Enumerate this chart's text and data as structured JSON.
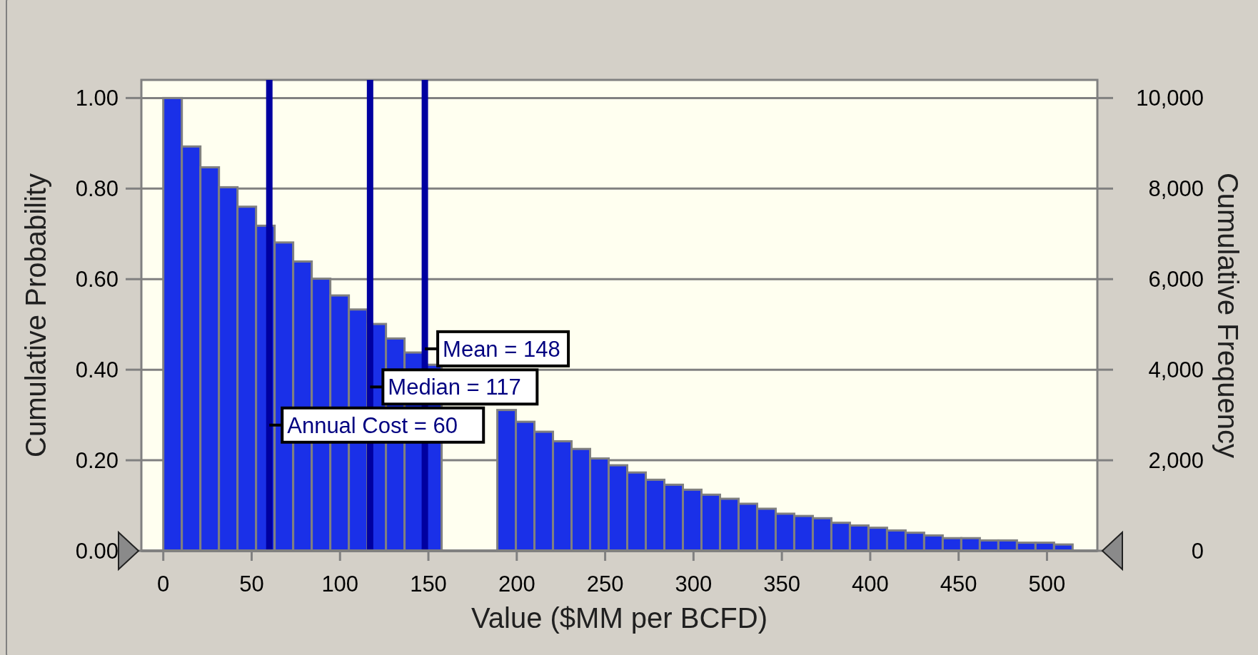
{
  "chart_data": {
    "type": "histogram",
    "xlabel": "Value ($MM per BCFD)",
    "ylabel": "Cumulative Probability",
    "y2label": "Cumulative Frequency",
    "bins": [
      0,
      10.5,
      21,
      31.5,
      42,
      52.5,
      63,
      73.5,
      84,
      94.5,
      105,
      115.5,
      126,
      136.5,
      147,
      157.5,
      168,
      178.5,
      189,
      199.5,
      210,
      220.5,
      231,
      241.5,
      252,
      262.5,
      273,
      283.5,
      294,
      304.5,
      315,
      325.5,
      336,
      346.5,
      357,
      367.5,
      378,
      388.5,
      399,
      409.5,
      420,
      430.5,
      441,
      451.5,
      462,
      472.5,
      483,
      493.5,
      504,
      514.5
    ],
    "values": [
      1.0,
      0.893,
      0.847,
      0.803,
      0.76,
      0.718,
      0.681,
      0.639,
      0.601,
      0.564,
      0.533,
      0.501,
      0.469,
      0.438,
      0.411,
      null,
      null,
      null,
      0.311,
      0.285,
      0.263,
      0.242,
      0.225,
      0.204,
      0.189,
      0.173,
      0.157,
      0.146,
      0.135,
      0.124,
      0.115,
      0.104,
      0.093,
      0.082,
      0.077,
      0.072,
      0.062,
      0.056,
      0.051,
      0.045,
      0.04,
      0.034,
      0.028,
      0.028,
      0.023,
      0.023,
      0.018,
      0.018,
      0.014
    ],
    "color": "#1a30e8",
    "xlim": [
      -12.4,
      528.5
    ],
    "xticks": [
      0,
      50,
      100,
      150,
      200,
      250,
      300,
      350,
      400,
      450,
      500
    ],
    "ylim": [
      0,
      1.04
    ],
    "yticks": [
      {
        "value": 0,
        "label": "0.00"
      },
      {
        "value": 0.2,
        "label": "0.20"
      },
      {
        "value": 0.4,
        "label": "0.40"
      },
      {
        "value": 0.6,
        "label": "0.60"
      },
      {
        "value": 0.8,
        "label": "0.80"
      },
      {
        "value": 1,
        "label": "1.00"
      }
    ],
    "y2lim": [
      0,
      10400
    ],
    "y2ticks": [
      0,
      {
        "value": 2000,
        "label": "2,000"
      },
      {
        "value": 4000,
        "label": "4,000"
      },
      {
        "value": 6000,
        "label": "6,000"
      },
      {
        "value": 8000,
        "label": "8,000"
      },
      {
        "value": 10000,
        "label": "10,000"
      }
    ],
    "grid": "y",
    "ref_lines": [
      {
        "axis": "x",
        "value": 60,
        "label": "Annual Cost = 60",
        "color": "#0000a0"
      },
      {
        "axis": "x",
        "value": 117,
        "label": "Median = 117",
        "color": "#0000a0"
      },
      {
        "axis": "x",
        "value": 148,
        "label": "Mean = 148",
        "color": "#0000a0"
      }
    ]
  }
}
